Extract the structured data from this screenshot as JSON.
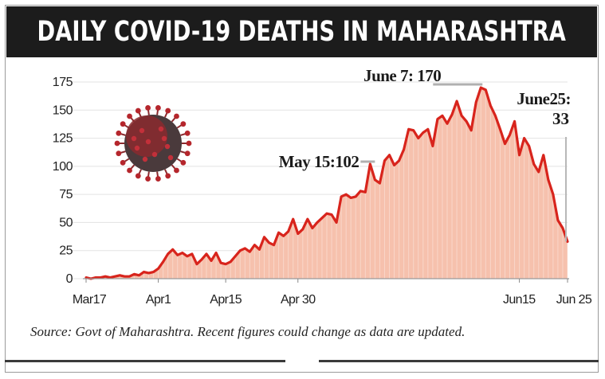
{
  "title": "DAILY COVID-19 DEATHS IN MAHARASHTRA",
  "source_note": "Source: Govt of Maharashtra. Recent figures could change as data are updated.",
  "colors": {
    "fill": "#f6c1ad",
    "line": "#d8241c",
    "title_bg": "#1c1c1c",
    "virus_body": "#8a2a2e",
    "virus_dark": "#4a3a3c"
  },
  "icons": {
    "virus": "coronavirus-icon"
  },
  "chart_data": {
    "type": "area",
    "title": "DAILY COVID-19 DEATHS IN MAHARASHTRA",
    "xlabel": "",
    "ylabel": "",
    "ylim": [
      0,
      175
    ],
    "yticks": [
      0,
      25,
      50,
      75,
      100,
      125,
      150,
      175
    ],
    "x_tick_labels": [
      "Mar17",
      "Apr1",
      "Apr15",
      "Apr 30",
      "Jun15",
      "Jun 25"
    ],
    "x_tick_dates": [
      "2020-03-17",
      "2020-04-01",
      "2020-04-15",
      "2020-04-30",
      "2020-06-15",
      "2020-06-25"
    ],
    "grid": true,
    "legend": "none",
    "series": [
      {
        "x": [
          "2020-03-17",
          "2020-03-18",
          "2020-03-19",
          "2020-03-20",
          "2020-03-21",
          "2020-03-22",
          "2020-03-23",
          "2020-03-24",
          "2020-03-25",
          "2020-03-26",
          "2020-03-27",
          "2020-03-28",
          "2020-03-29",
          "2020-03-30",
          "2020-03-31",
          "2020-04-01",
          "2020-04-02",
          "2020-04-03",
          "2020-04-04",
          "2020-04-05",
          "2020-04-06",
          "2020-04-07",
          "2020-04-08",
          "2020-04-09",
          "2020-04-10",
          "2020-04-11",
          "2020-04-12",
          "2020-04-13",
          "2020-04-14",
          "2020-04-15",
          "2020-04-16",
          "2020-04-17",
          "2020-04-18",
          "2020-04-19",
          "2020-04-20",
          "2020-04-21",
          "2020-04-22",
          "2020-04-23",
          "2020-04-24",
          "2020-04-25",
          "2020-04-26",
          "2020-04-27",
          "2020-04-28",
          "2020-04-29",
          "2020-04-30",
          "2020-05-01",
          "2020-05-02",
          "2020-05-03",
          "2020-05-04",
          "2020-05-05",
          "2020-05-06",
          "2020-05-07",
          "2020-05-08",
          "2020-05-09",
          "2020-05-10",
          "2020-05-11",
          "2020-05-12",
          "2020-05-13",
          "2020-05-14",
          "2020-05-15",
          "2020-05-16",
          "2020-05-17",
          "2020-05-18",
          "2020-05-19",
          "2020-05-20",
          "2020-05-21",
          "2020-05-22",
          "2020-05-23",
          "2020-05-24",
          "2020-05-25",
          "2020-05-26",
          "2020-05-27",
          "2020-05-28",
          "2020-05-29",
          "2020-05-30",
          "2020-05-31",
          "2020-06-01",
          "2020-06-02",
          "2020-06-03",
          "2020-06-04",
          "2020-06-05",
          "2020-06-06",
          "2020-06-07",
          "2020-06-08",
          "2020-06-09",
          "2020-06-10",
          "2020-06-11",
          "2020-06-12",
          "2020-06-13",
          "2020-06-14",
          "2020-06-15",
          "2020-06-16",
          "2020-06-17",
          "2020-06-18",
          "2020-06-19",
          "2020-06-20",
          "2020-06-21",
          "2020-06-22",
          "2020-06-23",
          "2020-06-24",
          "2020-06-25"
        ],
        "values": [
          1,
          0,
          1,
          1,
          2,
          1,
          2,
          3,
          2,
          2,
          4,
          3,
          6,
          5,
          6,
          9,
          15,
          22,
          26,
          21,
          23,
          20,
          22,
          13,
          17,
          22,
          16,
          23,
          14,
          13,
          15,
          20,
          25,
          27,
          24,
          30,
          26,
          37,
          32,
          30,
          41,
          38,
          42,
          53,
          40,
          44,
          53,
          45,
          50,
          54,
          58,
          57,
          50,
          73,
          75,
          72,
          73,
          78,
          77,
          102,
          88,
          85,
          105,
          110,
          101,
          105,
          115,
          133,
          132,
          125,
          130,
          133,
          118,
          142,
          145,
          138,
          146,
          158,
          145,
          140,
          132,
          157,
          170,
          168,
          154,
          145,
          133,
          120,
          128,
          140,
          110,
          125,
          118,
          102,
          95,
          110,
          88,
          75,
          52,
          45,
          33
        ]
      }
    ],
    "annotations": [
      {
        "date": "2020-05-15",
        "value": 102,
        "label": "May 15:102"
      },
      {
        "date": "2020-06-07",
        "value": 170,
        "label": "June 7: 170"
      },
      {
        "date": "2020-06-25",
        "value": 33,
        "label_line1": "June25:",
        "label_line2": "33"
      }
    ]
  }
}
